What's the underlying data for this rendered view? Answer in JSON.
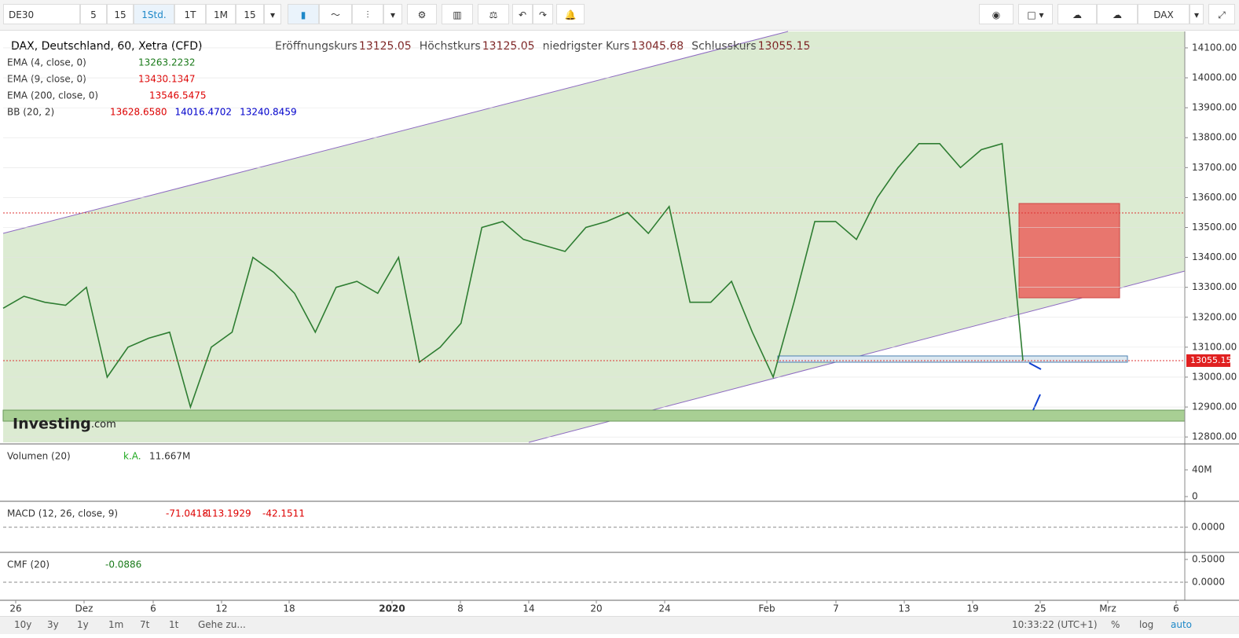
{
  "toolbar": {
    "symbol": "DE30",
    "buttons": [
      "5",
      "15",
      "1Std.",
      "1T",
      "1M",
      "15"
    ],
    "symbol_right": "DAX"
  },
  "legend": {
    "title": "DAX, Deutschland, 60, Xetra (CFD)",
    "fields": [
      [
        "Eröffnungskurs",
        "13125.05"
      ],
      [
        "Höchstkurs",
        "13125.05"
      ],
      [
        "niedrigster Kurs",
        "13045.68"
      ],
      [
        "Schlusskurs",
        "13055.15"
      ]
    ],
    "indicators": [
      {
        "name": "EMA (4, close, 0)",
        "values": [
          "13263.2232"
        ]
      },
      {
        "name": "EMA (9, close, 0)",
        "values": [
          "13430.1347"
        ]
      },
      {
        "name": "EMA (200, close, 0)",
        "values": [
          "13546.5475"
        ]
      },
      {
        "name": "BB (20, 2)",
        "values": [
          "13628.6580",
          "14016.4702",
          "13240.8459"
        ]
      }
    ]
  },
  "chart_data": {
    "type": "line",
    "color": "#2e7d32",
    "ylim": [
      12782,
      14155
    ],
    "yticks": [
      {
        "value": 14100,
        "label": "14100.00"
      },
      {
        "value": 14000,
        "label": "14000.00"
      },
      {
        "value": 13900,
        "label": "13900.00"
      },
      {
        "value": 13800,
        "label": "13800.00"
      },
      {
        "value": 13700,
        "label": "13700.00"
      },
      {
        "value": 13600,
        "label": "13600.00"
      },
      {
        "value": 13500,
        "label": "13500.00"
      },
      {
        "value": 13400,
        "label": "13400.00"
      },
      {
        "value": 13300,
        "label": "13300.00"
      },
      {
        "value": 13200,
        "label": "13200.00"
      },
      {
        "value": 13100,
        "label": "13100.00"
      },
      {
        "value": 13000,
        "label": "13000.00"
      },
      {
        "value": 12900,
        "label": "12900.00"
      },
      {
        "value": 12800,
        "label": "12800.00"
      }
    ],
    "values": [
      13230,
      13270,
      13250,
      13240,
      13300,
      13000,
      13100,
      13130,
      13150,
      12900,
      13100,
      13150,
      13400,
      13350,
      13280,
      13150,
      13300,
      13320,
      13280,
      13400,
      13050,
      13100,
      13180,
      13500,
      13520,
      13460,
      13440,
      13420,
      13500,
      13520,
      13550,
      13480,
      13570,
      13250,
      13250,
      13320,
      13150,
      13000,
      13250,
      13520,
      13520,
      13460,
      13600,
      13700,
      13780,
      13780,
      13700,
      13760,
      13780,
      13055.15
    ],
    "last_price": 13055.15
  },
  "x_axis": [
    "26",
    "Dez",
    "6",
    "12",
    "18",
    "2020",
    "8",
    "14",
    "20",
    "24",
    "Feb",
    "7",
    "13",
    "19",
    "25",
    "Mrz",
    "6"
  ],
  "panels": [
    {
      "title": "Volumen (20)",
      "values": [
        "k.A.",
        "11.667M"
      ],
      "ticks": [
        {
          "value": 40000000,
          "label": "40M"
        },
        0
      ]
    },
    {
      "title": "MACD (12, 26, close, 9)",
      "values": [
        "-71.0418",
        "-113.1929",
        "-42.1511"
      ],
      "ticks": [
        {
          "value": 0,
          "label": "0.0000"
        }
      ]
    },
    {
      "title": "CMF (20)",
      "values": [
        "-0.0886"
      ],
      "ticks": [
        {
          "value": 0.5,
          "label": "0.5000"
        },
        {
          "value": 0,
          "label": "0.0000"
        }
      ]
    }
  ],
  "bottom_bar": {
    "ranges": [
      "10y",
      "3y",
      "1y",
      "1m",
      "7t",
      "1t"
    ],
    "goto": "Gehe zu...",
    "time": "10:33:22 (UTC+1)",
    "options": [
      "%",
      "log",
      "auto"
    ]
  }
}
